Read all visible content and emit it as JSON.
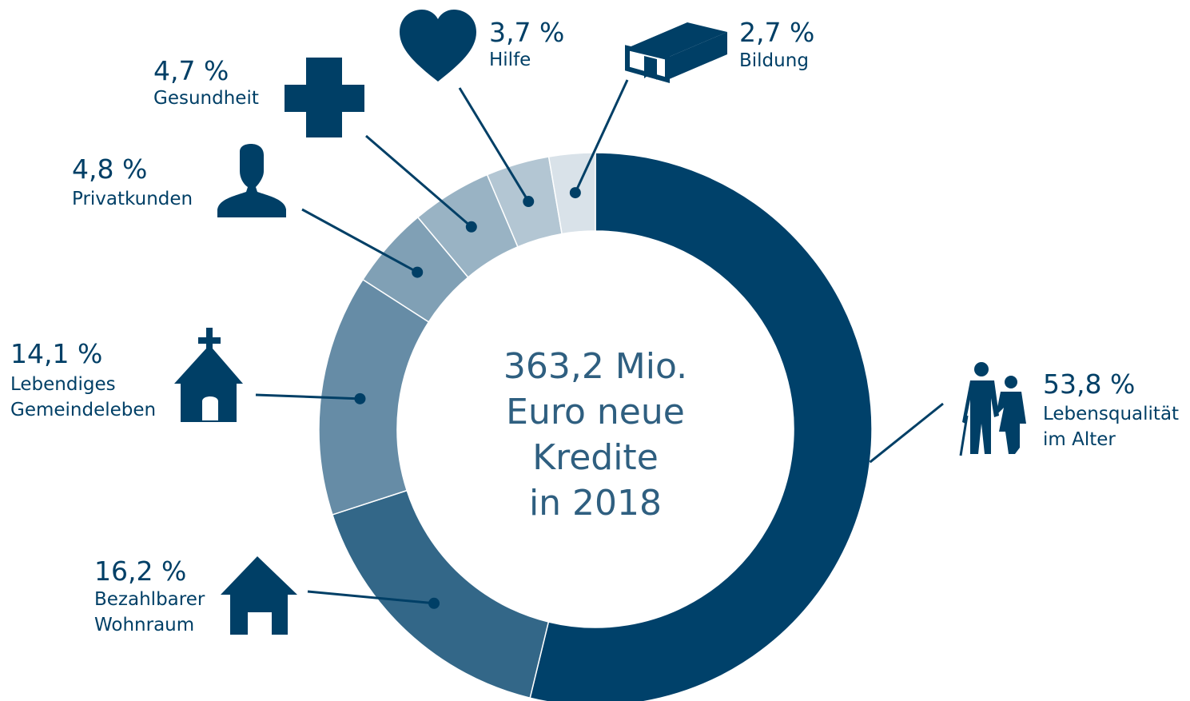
{
  "chart_data": {
    "type": "donut",
    "center_label": "363,2 Mio.\nEuro neue\nKredite\nin 2018",
    "categories": [
      "Lebensqualität\nim Alter",
      "Bezahlbarer\nWohnraum",
      "Lebendiges\nGemeindeleben",
      "Privatkunden",
      "Gesundheit",
      "Hilfe",
      "Bildung"
    ],
    "values": [
      53.8,
      16.2,
      14.1,
      4.8,
      4.7,
      3.7,
      2.7
    ],
    "value_labels": [
      "53,8 %",
      "16,2 %",
      "14,1 %",
      "4,8 %",
      "4,7 %",
      "3,7 %",
      "2,7 %"
    ],
    "colors": [
      "#00416a",
      "#336788",
      "#668ca6",
      "#80a0b5",
      "#99b3c4",
      "#b3c6d3",
      "#d9e2e9"
    ]
  }
}
